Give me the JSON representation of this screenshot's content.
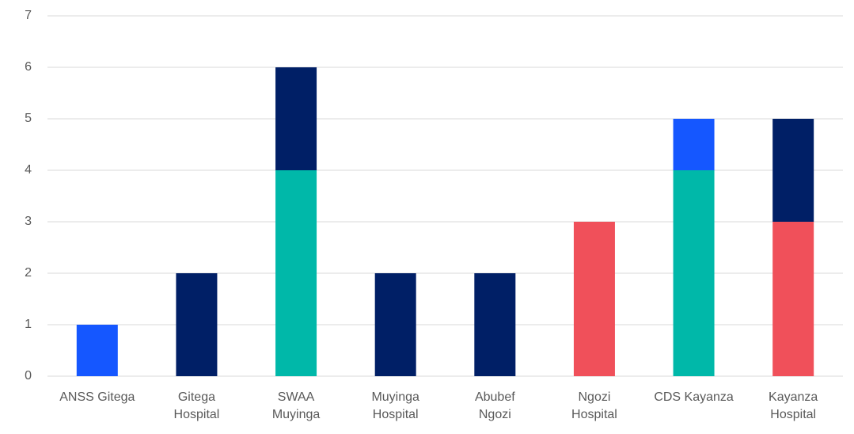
{
  "chart_data": {
    "type": "stacked_bar",
    "categories": [
      "ANSS Gitega",
      "Gitega\nHospital",
      "SWAA\nMuyinga",
      "Muyinga\nHospital",
      "Abubef\nNgozi",
      "Ngozi\nHospital",
      "CDS Kayanza",
      "Kayanza\nHospital"
    ],
    "series": [
      {
        "color": "#00b8a9",
        "values": [
          0,
          0,
          4,
          0,
          0,
          0,
          4,
          0
        ]
      },
      {
        "color": "#f0505a",
        "values": [
          0,
          0,
          0,
          0,
          0,
          3,
          0,
          3
        ]
      },
      {
        "color": "#1557ff",
        "values": [
          1,
          0,
          0,
          0,
          0,
          0,
          1,
          0
        ]
      },
      {
        "color": "#001f66",
        "values": [
          0,
          2,
          2,
          2,
          2,
          0,
          0,
          2
        ]
      }
    ],
    "ylim": [
      0,
      7
    ],
    "yticks": [
      0,
      1,
      2,
      3,
      4,
      5,
      6,
      7
    ],
    "grid": true
  }
}
